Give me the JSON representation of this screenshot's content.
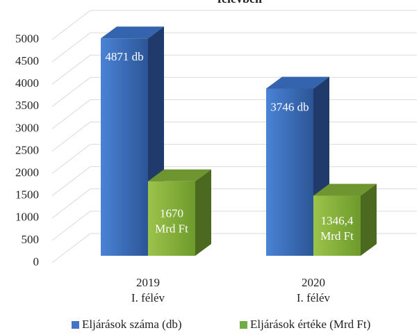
{
  "chart_data": {
    "type": "bar3d",
    "title": "félévben",
    "categories": [
      "2019\nI. félév",
      "2020\nI. félév"
    ],
    "series": [
      {
        "name": "Eljárások száma (db)",
        "color": "#4472c4",
        "values": [
          4871,
          3746
        ],
        "value_labels": [
          "4871 db",
          "3746 db"
        ]
      },
      {
        "name": "Eljárások értéke (Mrd Ft)",
        "color": "#70ad47",
        "values": [
          1670,
          1346.4
        ],
        "value_labels": [
          "1670\nMrd Ft",
          "1346,4\nMrd Ft"
        ]
      }
    ],
    "ylim": [
      0,
      5000
    ],
    "yticks": [
      0,
      500,
      1000,
      1500,
      2000,
      2500,
      3000,
      3500,
      4000,
      4500,
      5000
    ],
    "grid": true,
    "legend": "bottom"
  }
}
